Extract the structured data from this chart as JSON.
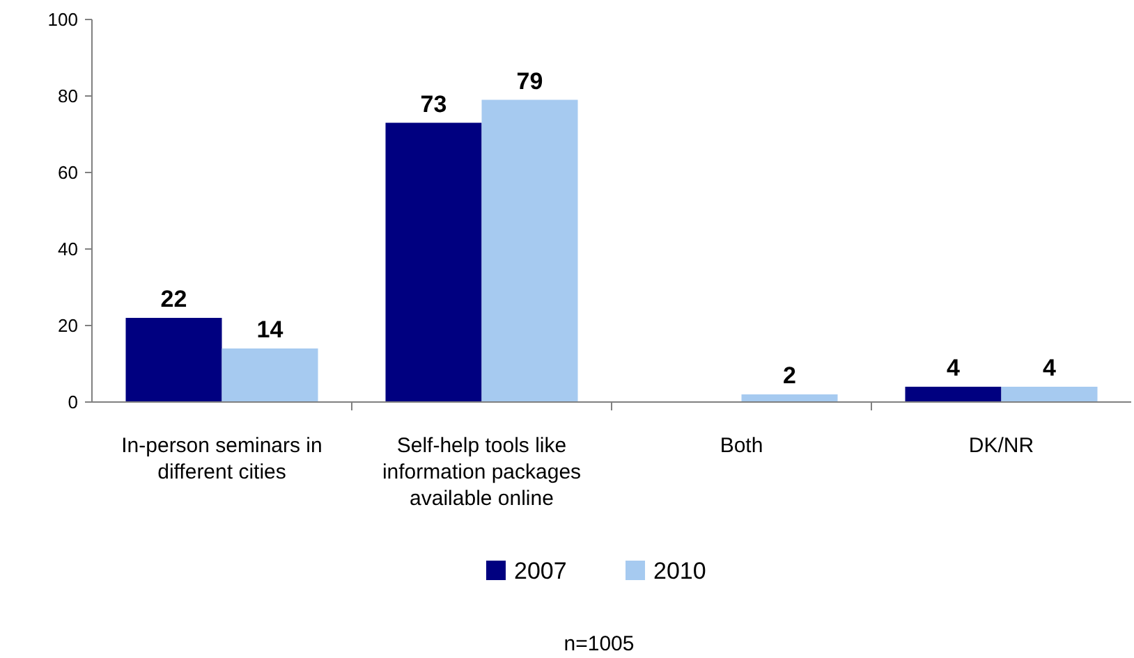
{
  "chart_data": {
    "type": "bar",
    "categories": [
      "In-person seminars in different cities",
      "Self-help tools like information packages available online",
      "Both",
      "DK/NR"
    ],
    "series": [
      {
        "name": "2007",
        "color": "#000080",
        "values": [
          22,
          73,
          null,
          4
        ]
      },
      {
        "name": "2010",
        "color": "#a6caf0",
        "values": [
          14,
          79,
          2,
          4
        ]
      }
    ],
    "ylim": [
      0,
      100
    ],
    "yticks": [
      0,
      20,
      40,
      60,
      80,
      100
    ],
    "grid": false,
    "legend": "bottom",
    "data_labels": true,
    "annotations": [
      "n=1005"
    ]
  }
}
